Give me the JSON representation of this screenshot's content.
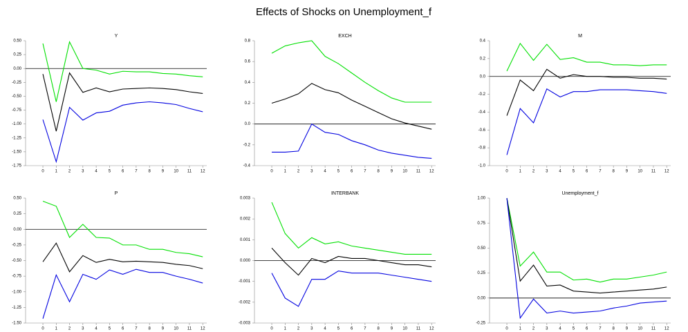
{
  "title": "Effects of Shocks on Unemployment_f",
  "chart_data": [
    {
      "type": "line",
      "title": "Y",
      "x": [
        0,
        1,
        2,
        3,
        4,
        5,
        6,
        7,
        8,
        9,
        10,
        11,
        12
      ],
      "xlim": [
        -1.3,
        12.3
      ],
      "xticks": [
        0,
        1,
        2,
        3,
        4,
        5,
        6,
        7,
        8,
        9,
        10,
        11,
        12
      ],
      "ylim": [
        -1.75,
        0.5
      ],
      "yticks": [
        {
          "value": 0.5,
          "label": "0.50"
        },
        {
          "value": 0.25,
          "label": "0.25"
        },
        {
          "value": 0,
          "label": "0.00"
        },
        {
          "value": -0.25,
          "label": "-0.25"
        },
        {
          "value": -0.5,
          "label": "-0.50"
        },
        {
          "value": -0.75,
          "label": "-0.75"
        },
        {
          "value": -1,
          "label": "-1.00"
        },
        {
          "value": -1.25,
          "label": "-1.25"
        },
        {
          "value": -1.5,
          "label": "-1.50"
        },
        {
          "value": -1.75,
          "label": "-1.75"
        }
      ],
      "zero_line": true,
      "series": [
        {
          "color": "#00e000",
          "values": [
            0.45,
            -0.6,
            0.48,
            0.0,
            -0.03,
            -0.1,
            -0.05,
            -0.06,
            -0.06,
            -0.09,
            -0.1,
            -0.13,
            -0.15
          ]
        },
        {
          "color": "#000000",
          "values": [
            -0.1,
            -1.13,
            -0.08,
            -0.43,
            -0.35,
            -0.42,
            -0.37,
            -0.36,
            -0.35,
            -0.36,
            -0.38,
            -0.42,
            -0.45
          ]
        },
        {
          "color": "#0000e0",
          "values": [
            -0.92,
            -1.68,
            -0.7,
            -0.93,
            -0.8,
            -0.77,
            -0.66,
            -0.62,
            -0.6,
            -0.62,
            -0.65,
            -0.72,
            -0.78
          ]
        }
      ]
    },
    {
      "type": "line",
      "title": "EXCH",
      "x": [
        0,
        1,
        2,
        3,
        4,
        5,
        6,
        7,
        8,
        9,
        10,
        11,
        12
      ],
      "xlim": [
        -1.3,
        12.3
      ],
      "xticks": [
        0,
        1,
        2,
        3,
        4,
        5,
        6,
        7,
        8,
        9,
        10,
        11,
        12
      ],
      "ylim": [
        -0.4,
        0.8
      ],
      "yticks": [
        0.8,
        0.6,
        0.4,
        0.2,
        {
          "value": 0,
          "label": "0.0"
        },
        -0.2,
        -0.4
      ],
      "zero_line": true,
      "series": [
        {
          "color": "#00e000",
          "values": [
            0.68,
            0.75,
            0.78,
            0.8,
            0.65,
            0.58,
            0.49,
            0.4,
            0.32,
            0.25,
            0.21,
            0.21,
            0.21
          ]
        },
        {
          "color": "#000000",
          "values": [
            0.2,
            0.24,
            0.29,
            0.39,
            0.33,
            0.3,
            0.23,
            0.17,
            0.11,
            0.05,
            0.01,
            -0.02,
            -0.05
          ]
        },
        {
          "color": "#0000e0",
          "values": [
            -0.27,
            -0.27,
            -0.26,
            0.0,
            -0.08,
            -0.1,
            -0.16,
            -0.2,
            -0.25,
            -0.28,
            -0.3,
            -0.32,
            -0.33
          ]
        }
      ]
    },
    {
      "type": "line",
      "title": "M",
      "x": [
        0,
        1,
        2,
        3,
        4,
        5,
        6,
        7,
        8,
        9,
        10,
        11,
        12
      ],
      "xlim": [
        -1.3,
        12.3
      ],
      "xticks": [
        0,
        1,
        2,
        3,
        4,
        5,
        6,
        7,
        8,
        9,
        10,
        11,
        12
      ],
      "ylim": [
        -1.0,
        0.4
      ],
      "yticks": [
        0.4,
        0.2,
        {
          "value": 0,
          "label": "0.0"
        },
        -0.2,
        -0.4,
        -0.6,
        -0.8,
        {
          "value": -1,
          "label": "-1.0"
        }
      ],
      "zero_line": true,
      "series": [
        {
          "color": "#00e000",
          "values": [
            0.06,
            0.37,
            0.18,
            0.36,
            0.19,
            0.21,
            0.16,
            0.16,
            0.13,
            0.13,
            0.12,
            0.13,
            0.13
          ]
        },
        {
          "color": "#000000",
          "values": [
            -0.44,
            -0.04,
            -0.16,
            0.08,
            -0.02,
            0.02,
            0.0,
            0.0,
            -0.01,
            -0.01,
            -0.02,
            -0.02,
            -0.03
          ]
        },
        {
          "color": "#0000e0",
          "values": [
            -0.88,
            -0.36,
            -0.52,
            -0.14,
            -0.23,
            -0.17,
            -0.17,
            -0.15,
            -0.15,
            -0.15,
            -0.16,
            -0.17,
            -0.19
          ]
        }
      ]
    },
    {
      "type": "line",
      "title": "P",
      "x": [
        0,
        1,
        2,
        3,
        4,
        5,
        6,
        7,
        8,
        9,
        10,
        11,
        12
      ],
      "xlim": [
        -1.3,
        12.3
      ],
      "xticks": [
        0,
        1,
        2,
        3,
        4,
        5,
        6,
        7,
        8,
        9,
        10,
        11,
        12
      ],
      "ylim": [
        -1.5,
        0.5
      ],
      "yticks": [
        {
          "value": 0.5,
          "label": "0.50"
        },
        {
          "value": 0.25,
          "label": "0.25"
        },
        {
          "value": 0,
          "label": "0.00"
        },
        {
          "value": -0.25,
          "label": "-0.25"
        },
        {
          "value": -0.5,
          "label": "-0.50"
        },
        {
          "value": -0.75,
          "label": "-0.75"
        },
        {
          "value": -1,
          "label": "-1.00"
        },
        {
          "value": -1.25,
          "label": "-1.25"
        },
        {
          "value": -1.5,
          "label": "-1.50"
        }
      ],
      "zero_line": true,
      "series": [
        {
          "color": "#00e000",
          "values": [
            0.45,
            0.37,
            -0.13,
            0.08,
            -0.13,
            -0.14,
            -0.25,
            -0.25,
            -0.32,
            -0.32,
            -0.37,
            -0.39,
            -0.44
          ]
        },
        {
          "color": "#000000",
          "values": [
            -0.52,
            -0.22,
            -0.68,
            -0.42,
            -0.53,
            -0.48,
            -0.52,
            -0.51,
            -0.52,
            -0.53,
            -0.56,
            -0.58,
            -0.63
          ]
        },
        {
          "color": "#0000e0",
          "values": [
            -1.43,
            -0.73,
            -1.16,
            -0.72,
            -0.8,
            -0.65,
            -0.72,
            -0.64,
            -0.69,
            -0.69,
            -0.75,
            -0.8,
            -0.86
          ]
        }
      ]
    },
    {
      "type": "line",
      "title": "INTERBANK",
      "x": [
        0,
        1,
        2,
        3,
        4,
        5,
        6,
        7,
        8,
        9,
        10,
        11,
        12
      ],
      "xlim": [
        -1.3,
        12.3
      ],
      "xticks": [
        0,
        1,
        2,
        3,
        4,
        5,
        6,
        7,
        8,
        9,
        10,
        11,
        12
      ],
      "ylim": [
        -0.003,
        0.003
      ],
      "yticks": [
        0.003,
        0.002,
        0.001,
        {
          "value": 0,
          "label": "0.000"
        },
        -0.001,
        -0.002,
        -0.003
      ],
      "zero_line": true,
      "series": [
        {
          "color": "#00e000",
          "values": [
            0.0028,
            0.0013,
            0.0006,
            0.0011,
            0.0008,
            0.0009,
            0.0007,
            0.0006,
            0.0005,
            0.0004,
            0.0003,
            0.0003,
            0.0003
          ]
        },
        {
          "color": "#000000",
          "values": [
            0.0006,
            -0.0001,
            -0.0007,
            0.0001,
            -0.0001,
            0.0002,
            0.0001,
            0.0001,
            0.0,
            -0.0001,
            -0.0002,
            -0.0002,
            -0.0003
          ]
        },
        {
          "color": "#0000e0",
          "values": [
            -0.0006,
            -0.0018,
            -0.0022,
            -0.0009,
            -0.0009,
            -0.0005,
            -0.0006,
            -0.0006,
            -0.0006,
            -0.0007,
            -0.0008,
            -0.0009,
            -0.001
          ]
        }
      ]
    },
    {
      "type": "line",
      "title": "Unemployment_f",
      "x": [
        0,
        1,
        2,
        3,
        4,
        5,
        6,
        7,
        8,
        9,
        10,
        11,
        12
      ],
      "xlim": [
        -1.3,
        12.3
      ],
      "xticks": [
        0,
        1,
        2,
        3,
        4,
        5,
        6,
        7,
        8,
        9,
        10,
        11,
        12
      ],
      "ylim": [
        -0.25,
        1.0
      ],
      "yticks": [
        {
          "value": 1,
          "label": "1.00"
        },
        {
          "value": 0.75,
          "label": "0.75"
        },
        {
          "value": 0.5,
          "label": "0.50"
        },
        {
          "value": 0.25,
          "label": "0.25"
        },
        {
          "value": 0,
          "label": "0.00"
        },
        {
          "value": -0.25,
          "label": "-0.25"
        }
      ],
      "zero_line": true,
      "series": [
        {
          "color": "#00e000",
          "values": [
            1.0,
            0.32,
            0.46,
            0.26,
            0.26,
            0.18,
            0.19,
            0.16,
            0.19,
            0.19,
            0.21,
            0.23,
            0.26
          ]
        },
        {
          "color": "#000000",
          "values": [
            1.0,
            0.17,
            0.33,
            0.12,
            0.13,
            0.07,
            0.06,
            0.05,
            0.06,
            0.07,
            0.08,
            0.09,
            0.11
          ]
        },
        {
          "color": "#0000e0",
          "values": [
            1.0,
            -0.2,
            -0.01,
            -0.15,
            -0.13,
            -0.15,
            -0.14,
            -0.13,
            -0.1,
            -0.08,
            -0.05,
            -0.04,
            -0.03
          ]
        }
      ]
    }
  ]
}
